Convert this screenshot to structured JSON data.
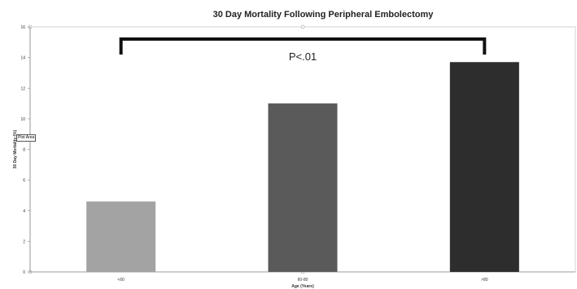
{
  "chart_data": {
    "type": "bar",
    "title": "30 Day Mortality Following Peripheral Embolectomy",
    "xlabel": "Age (Years)",
    "ylabel": "30 Day Mortality (%)",
    "categories": [
      "<60",
      "60-80",
      ">80"
    ],
    "values": [
      4.6,
      11.0,
      13.7
    ],
    "bar_colors": [
      "#a3a3a3",
      "#5a5a5a",
      "#2d2d2d"
    ],
    "ylim": [
      0,
      16
    ],
    "yticks": [
      0,
      2,
      4,
      6,
      8,
      10,
      12,
      14,
      16
    ],
    "grid": false,
    "legend": "none",
    "annotation": {
      "text": "P<.01",
      "bracket_from": "<60",
      "bracket_to": ">80"
    }
  },
  "plot_area_label": "Plot Area"
}
